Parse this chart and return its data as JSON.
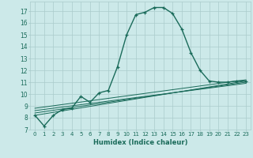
{
  "title": "",
  "xlabel": "Humidex (Indice chaleur)",
  "ylabel": "",
  "background_color": "#cce9e9",
  "grid_color": "#aacccc",
  "line_color": "#1a6b5a",
  "xlim": [
    -0.5,
    23.5
  ],
  "ylim": [
    7,
    17.8
  ],
  "yticks": [
    7,
    8,
    9,
    10,
    11,
    12,
    13,
    14,
    15,
    16,
    17
  ],
  "xticks": [
    0,
    1,
    2,
    3,
    4,
    5,
    6,
    7,
    8,
    9,
    10,
    11,
    12,
    13,
    14,
    15,
    16,
    17,
    18,
    19,
    20,
    21,
    22,
    23
  ],
  "series": [
    [
      0,
      8.2
    ],
    [
      1,
      7.3
    ],
    [
      2,
      8.2
    ],
    [
      3,
      8.7
    ],
    [
      4,
      8.8
    ],
    [
      5,
      9.8
    ],
    [
      6,
      9.3
    ],
    [
      7,
      10.1
    ],
    [
      8,
      10.3
    ],
    [
      9,
      12.3
    ],
    [
      10,
      15.0
    ],
    [
      11,
      16.7
    ],
    [
      12,
      16.9
    ],
    [
      13,
      17.3
    ],
    [
      14,
      17.3
    ],
    [
      15,
      16.8
    ],
    [
      16,
      15.5
    ],
    [
      17,
      13.5
    ],
    [
      18,
      12.0
    ],
    [
      19,
      11.1
    ],
    [
      20,
      11.0
    ],
    [
      21,
      11.0
    ],
    [
      22,
      11.1
    ],
    [
      23,
      11.1
    ]
  ],
  "linear_lines": [
    [
      0,
      8.2,
      23,
      11.1
    ],
    [
      0,
      8.4,
      23,
      11.0
    ],
    [
      0,
      8.6,
      23,
      10.9
    ],
    [
      0,
      8.8,
      23,
      11.2
    ]
  ]
}
